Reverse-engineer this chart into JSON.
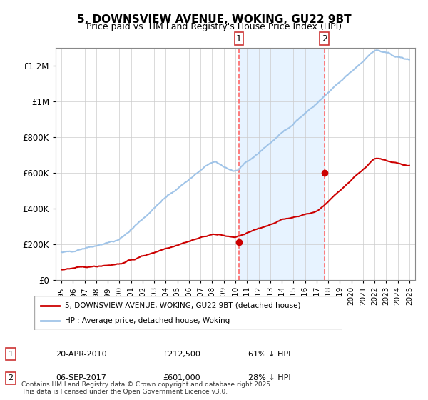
{
  "title": "5, DOWNSVIEW AVENUE, WOKING, GU22 9BT",
  "subtitle": "Price paid vs. HM Land Registry's House Price Index (HPI)",
  "ylabel": "",
  "background_color": "#ffffff",
  "plot_bg_color": "#ffffff",
  "hpi_color": "#a0c4e8",
  "price_color": "#cc0000",
  "dashed_line_color": "#ff6666",
  "sale1_date_num": 2010.31,
  "sale1_price": 212500,
  "sale2_date_num": 2017.68,
  "sale2_price": 601000,
  "sale1_label": "1",
  "sale2_label": "2",
  "legend_entry1": "5, DOWNSVIEW AVENUE, WOKING, GU22 9BT (detached house)",
  "legend_entry2": "HPI: Average price, detached house, Woking",
  "table_row1": [
    "1",
    "20-APR-2010",
    "£212,500",
    "61% ↓ HPI"
  ],
  "table_row2": [
    "2",
    "06-SEP-2017",
    "£601,000",
    "28% ↓ HPI"
  ],
  "footnote": "Contains HM Land Registry data © Crown copyright and database right 2025.\nThis data is licensed under the Open Government Licence v3.0.",
  "ylim_max": 1300000,
  "xmin": 1994.5,
  "xmax": 2025.5,
  "yticks": [
    0,
    200000,
    400000,
    600000,
    800000,
    1000000,
    1200000
  ],
  "ytick_labels": [
    "£0",
    "£200K",
    "£400K",
    "£600K",
    "£800K",
    "£1M",
    "£1.2M"
  ]
}
